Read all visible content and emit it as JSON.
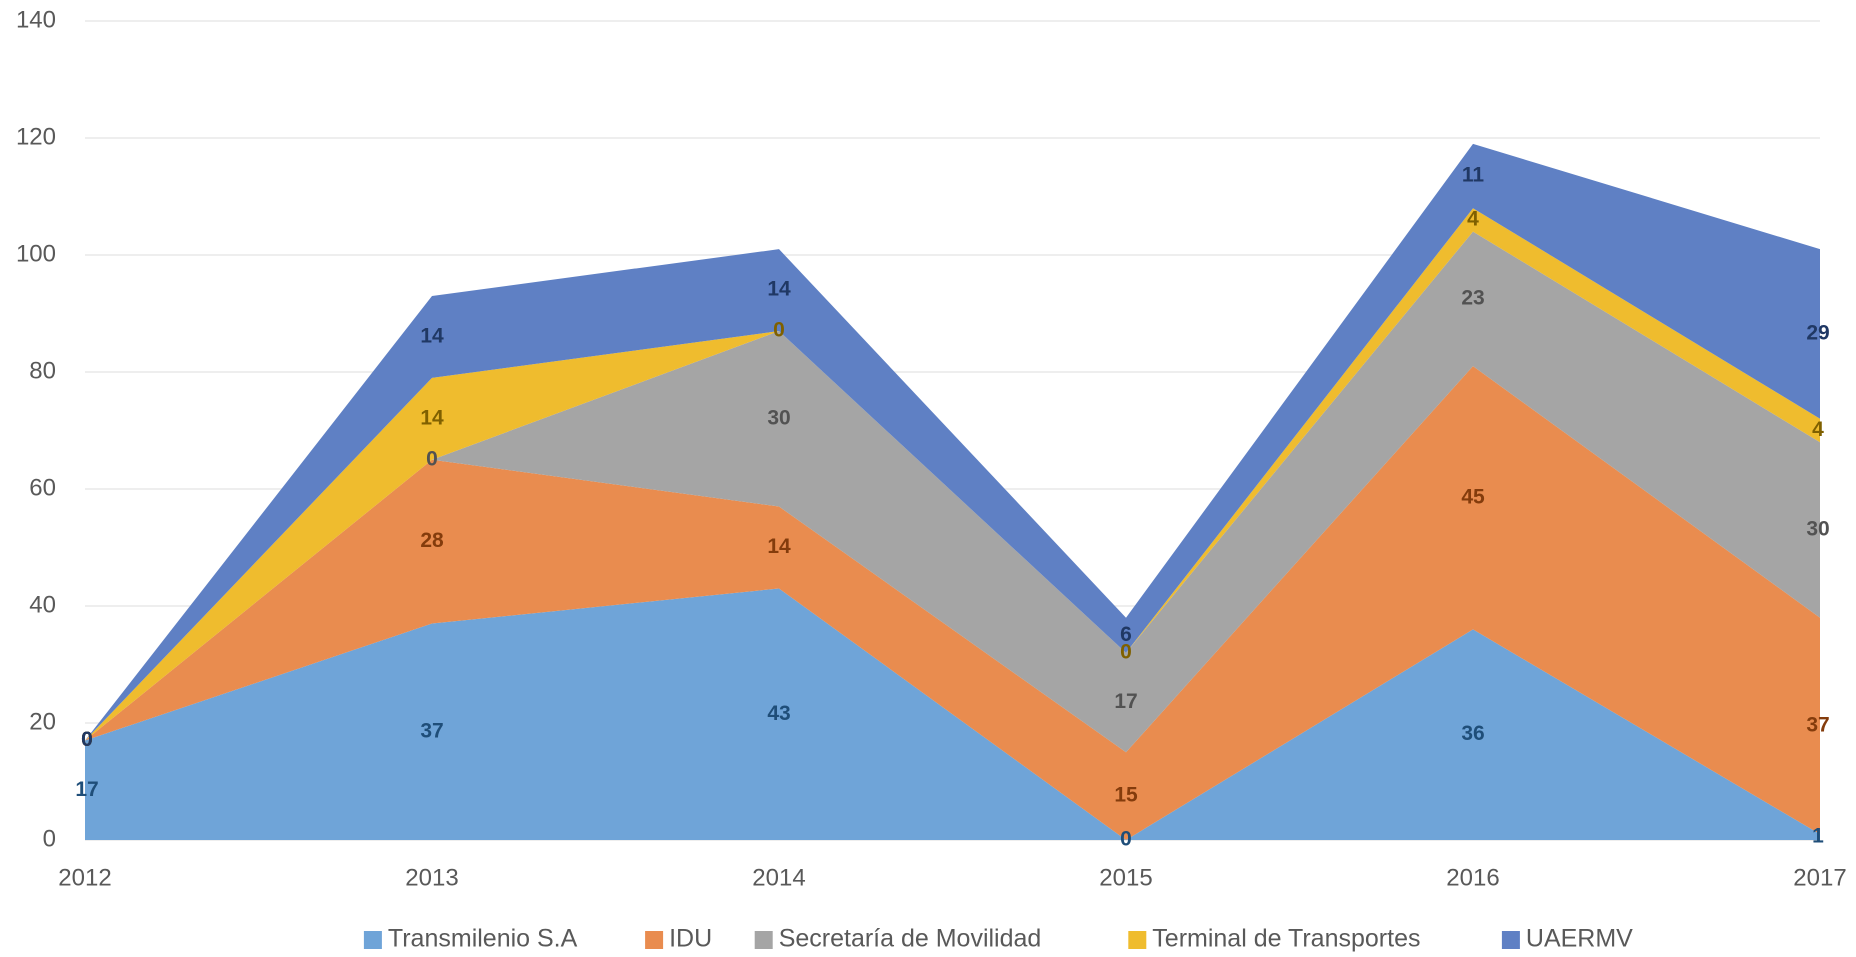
{
  "chart_data": {
    "type": "stacked_area",
    "x": [
      2012,
      2013,
      2014,
      2015,
      2016,
      2017
    ],
    "xlim": [
      2012,
      2017
    ],
    "xticks": [
      2012,
      2013,
      2014,
      2015,
      2016,
      2017
    ],
    "ylim": [
      0,
      140
    ],
    "yticks": [
      0,
      20,
      40,
      60,
      80,
      100,
      120,
      140
    ],
    "grid": true,
    "legend": "bottom",
    "series": [
      {
        "name": "Transmilenio S.A",
        "color": "#6fa4d8",
        "label_color": "#1f4e79",
        "values": [
          17,
          37,
          43,
          0,
          36,
          1
        ]
      },
      {
        "name": "IDU",
        "color": "#e98c4f",
        "label_color": "#843c0c",
        "values": [
          0,
          28,
          14,
          15,
          45,
          37
        ]
      },
      {
        "name": "Secretaría de Movilidad",
        "color": "#a5a5a5",
        "label_color": "#525252",
        "values": [
          0,
          0,
          30,
          17,
          23,
          30
        ]
      },
      {
        "name": "Terminal de Transportes",
        "color": "#efbc2e",
        "label_color": "#7f6000",
        "values": [
          0,
          14,
          0,
          0,
          4,
          4
        ]
      },
      {
        "name": "UAERMV",
        "color": "#5f80c4",
        "label_color": "#203864",
        "values": [
          0,
          14,
          14,
          6,
          11,
          29
        ]
      }
    ]
  }
}
